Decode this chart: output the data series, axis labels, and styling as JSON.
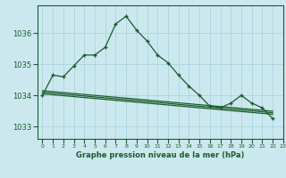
{
  "title": "Graphe pression niveau de la mer (hPa)",
  "bg_color": "#cce8ef",
  "grid_color": "#aad4dc",
  "line_color": "#1a5c2a",
  "ylim": [
    1032.6,
    1036.9
  ],
  "yticks": [
    1033,
    1034,
    1035,
    1036
  ],
  "x_labels": [
    "0",
    "1",
    "2",
    "3",
    "4",
    "5",
    "6",
    "7",
    "8",
    "9",
    "10",
    "11",
    "12",
    "13",
    "14",
    "15",
    "16",
    "17",
    "18",
    "19",
    "20",
    "21",
    "22",
    "23"
  ],
  "line1_x": [
    0,
    1,
    2,
    3,
    4,
    5,
    6,
    7,
    8,
    9,
    10,
    11,
    12,
    13,
    14,
    15,
    16,
    17,
    18,
    19,
    20,
    21,
    22
  ],
  "line1_y": [
    1034.0,
    1034.65,
    1034.6,
    1034.95,
    1035.3,
    1035.3,
    1035.55,
    1036.3,
    1036.55,
    1036.1,
    1035.75,
    1035.3,
    1035.05,
    1034.65,
    1034.3,
    1034.0,
    1033.65,
    1033.6,
    1033.75,
    1034.0,
    1033.75,
    1033.6,
    1033.25
  ],
  "line2_x": [
    0,
    1,
    2,
    3,
    4,
    5,
    6,
    7,
    8,
    9,
    10,
    11,
    12,
    13,
    14,
    15,
    16,
    17,
    18,
    19,
    20,
    21,
    22
  ],
  "line2_y": [
    1034.05,
    1034.02,
    1033.99,
    1033.96,
    1033.93,
    1033.9,
    1033.87,
    1033.84,
    1033.81,
    1033.78,
    1033.75,
    1033.72,
    1033.69,
    1033.66,
    1033.63,
    1033.6,
    1033.57,
    1033.54,
    1033.51,
    1033.48,
    1033.45,
    1033.42,
    1033.39
  ],
  "line3_x": [
    0,
    1,
    2,
    3,
    4,
    5,
    6,
    7,
    8,
    9,
    10,
    11,
    12,
    13,
    14,
    15,
    16,
    17,
    18,
    19,
    20,
    21,
    22
  ],
  "line3_y": [
    1034.1,
    1034.07,
    1034.04,
    1034.01,
    1033.98,
    1033.95,
    1033.92,
    1033.89,
    1033.86,
    1033.83,
    1033.8,
    1033.77,
    1033.74,
    1033.71,
    1033.68,
    1033.65,
    1033.62,
    1033.59,
    1033.56,
    1033.53,
    1033.5,
    1033.47,
    1033.44
  ],
  "line4_x": [
    0,
    1,
    2,
    3,
    4,
    5,
    6,
    7,
    8,
    9,
    10,
    11,
    12,
    13,
    14,
    15,
    16,
    17,
    18,
    19,
    20,
    21,
    22
  ],
  "line4_y": [
    1034.15,
    1034.12,
    1034.09,
    1034.06,
    1034.03,
    1034.0,
    1033.97,
    1033.94,
    1033.91,
    1033.88,
    1033.85,
    1033.82,
    1033.79,
    1033.76,
    1033.73,
    1033.7,
    1033.67,
    1033.64,
    1033.61,
    1033.58,
    1033.55,
    1033.52,
    1033.49
  ]
}
